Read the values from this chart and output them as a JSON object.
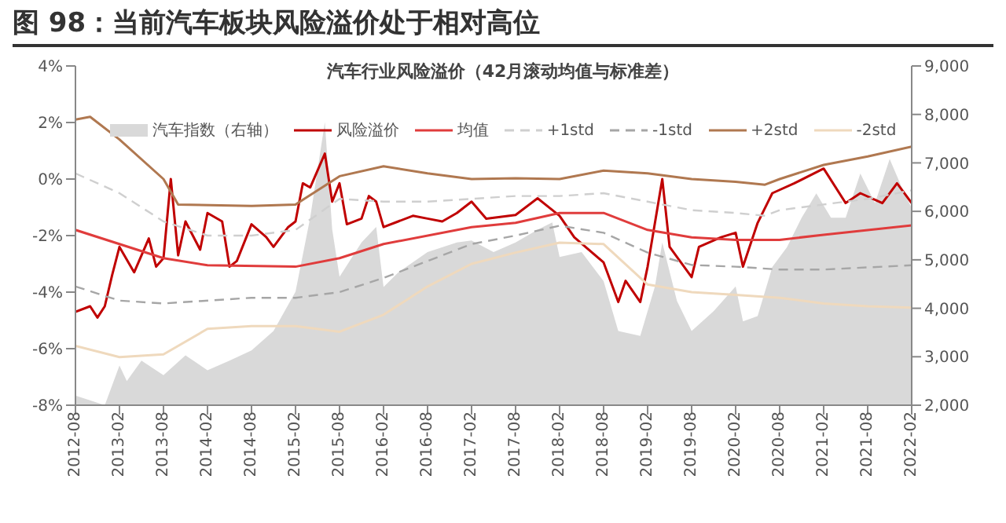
{
  "chart_data": {
    "type": "line",
    "title": "图 98：当前汽车板块风险溢价处于相对高位",
    "subtitle": "汽车行业风险溢价（42月滚动均值与标准差）",
    "xlim": [
      "2012-08",
      "2022-02"
    ],
    "xticks": [
      "2012-08",
      "2013-02",
      "2013-08",
      "2014-02",
      "2014-08",
      "2015-02",
      "2015-08",
      "2016-02",
      "2016-08",
      "2017-02",
      "2017-08",
      "2018-02",
      "2018-08",
      "2019-02",
      "2019-08",
      "2020-02",
      "2020-08",
      "2021-02",
      "2021-08",
      "2022-02"
    ],
    "ylim": [
      -8,
      4
    ],
    "yticks": [
      {
        "value": -8,
        "label": "-8%"
      },
      {
        "value": -6,
        "label": "-6%"
      },
      {
        "value": -4,
        "label": "-4%"
      },
      {
        "value": -2,
        "label": "-2%"
      },
      {
        "value": 0,
        "label": "0%"
      },
      {
        "value": 2,
        "label": "2%"
      },
      {
        "value": 4,
        "label": "4%"
      }
    ],
    "y2lim": [
      2000,
      9000
    ],
    "y2ticks": [
      {
        "value": 2000,
        "label": "2,000"
      },
      {
        "value": 3000,
        "label": "3,000"
      },
      {
        "value": 4000,
        "label": "4,000"
      },
      {
        "value": 5000,
        "label": "5,000"
      },
      {
        "value": 6000,
        "label": "6,000"
      },
      {
        "value": 7000,
        "label": "7,000"
      },
      {
        "value": 8000,
        "label": "8,000"
      },
      {
        "value": 9000,
        "label": "9,000"
      }
    ],
    "grid": false,
    "legend": "top",
    "marker": "none",
    "series": [
      {
        "name": "汽车指数（右轴）",
        "type": "area",
        "axis": "y2",
        "color": "#d9d9d9",
        "x": [
          "2012-08",
          "2012-12",
          "2013-02",
          "2013-03",
          "2013-05",
          "2013-08",
          "2013-11",
          "2014-02",
          "2014-05",
          "2014-08",
          "2014-11",
          "2015-02",
          "2015-04",
          "2015-06",
          "2015-07",
          "2015-08",
          "2015-11",
          "2016-01",
          "2016-02",
          "2016-04",
          "2016-08",
          "2016-12",
          "2017-02",
          "2017-05",
          "2017-08",
          "2017-11",
          "2018-01",
          "2018-02",
          "2018-05",
          "2018-08",
          "2018-10",
          "2019-01",
          "2019-03",
          "2019-04",
          "2019-06",
          "2019-08",
          "2019-11",
          "2020-02",
          "2020-03",
          "2020-05",
          "2020-07",
          "2020-09",
          "2020-11",
          "2021-01",
          "2021-03",
          "2021-05",
          "2021-07",
          "2021-09",
          "2021-11",
          "2022-01",
          "2022-02"
        ],
        "values": [
          2200,
          2000,
          2820,
          2500,
          2920,
          2620,
          3030,
          2720,
          2920,
          3130,
          3530,
          4340,
          5870,
          7840,
          5630,
          4650,
          5360,
          5680,
          4440,
          4740,
          5160,
          5360,
          5400,
          5160,
          5360,
          5620,
          5770,
          5060,
          5160,
          4560,
          3530,
          3430,
          4450,
          5360,
          4150,
          3530,
          3940,
          4450,
          3730,
          3840,
          4850,
          5260,
          5870,
          6370,
          5870,
          5870,
          6780,
          6170,
          7080,
          6370,
          6070
        ]
      },
      {
        "name": "风险溢价",
        "color": "#c00000",
        "line_style": "solid",
        "x": [
          "2012-08",
          "2012-10",
          "2012-11",
          "2012-12",
          "2013-01",
          "2013-02",
          "2013-04",
          "2013-06",
          "2013-07",
          "2013-08",
          "2013-09",
          "2013-10",
          "2013-11",
          "2014-01",
          "2014-02",
          "2014-04",
          "2014-05",
          "2014-06",
          "2014-08",
          "2014-10",
          "2014-11",
          "2015-01",
          "2015-02",
          "2015-03",
          "2015-04",
          "2015-06",
          "2015-07",
          "2015-08",
          "2015-09",
          "2015-11",
          "2015-12",
          "2016-01",
          "2016-02",
          "2016-04",
          "2016-06",
          "2016-08",
          "2016-10",
          "2016-12",
          "2017-02",
          "2017-04",
          "2017-08",
          "2017-11",
          "2018-02",
          "2018-04",
          "2018-08",
          "2018-10",
          "2018-11",
          "2019-01",
          "2019-02",
          "2019-04",
          "2019-05",
          "2019-08",
          "2019-09",
          "2019-12",
          "2020-02",
          "2020-03",
          "2020-05",
          "2020-07",
          "2020-10",
          "2021-02",
          "2021-05",
          "2021-07",
          "2021-10",
          "2021-12",
          "2022-02"
        ],
        "values": [
          -4.7,
          -4.5,
          -4.9,
          -4.5,
          -3.4,
          -2.4,
          -3.3,
          -2.1,
          -3.1,
          -2.8,
          0,
          -2.7,
          -1.5,
          -2.5,
          -1.2,
          -1.5,
          -3.1,
          -2.9,
          -1.6,
          -2.05,
          -2.4,
          -1.7,
          -1.5,
          -0.15,
          -0.3,
          0.9,
          -0.8,
          -0.15,
          -1.6,
          -1.4,
          -0.6,
          -0.8,
          -1.7,
          -1.5,
          -1.3,
          -1.4,
          -1.5,
          -1.2,
          -0.8,
          -1.4,
          -1.27,
          -0.68,
          -1.3,
          -2.06,
          -2.95,
          -4.35,
          -3.6,
          -4.35,
          -3.1,
          0,
          -2.4,
          -3.47,
          -2.4,
          -2.06,
          -1.9,
          -3.1,
          -1.55,
          -0.5,
          -0.15,
          0.37,
          -0.85,
          -0.5,
          -0.85,
          -0.15,
          -0.85
        ]
      },
      {
        "name": "均值",
        "color": "#e03c3c",
        "line_style": "solid",
        "x": [
          "2012-08",
          "2013-08",
          "2014-02",
          "2015-02",
          "2015-08",
          "2016-02",
          "2017-02",
          "2017-08",
          "2018-02",
          "2018-08",
          "2019-02",
          "2019-08",
          "2020-02",
          "2020-08",
          "2021-02",
          "2022-02"
        ],
        "values": [
          -1.8,
          -2.8,
          -3.05,
          -3.1,
          -2.8,
          -2.3,
          -1.7,
          -1.55,
          -1.2,
          -1.2,
          -1.8,
          -2.06,
          -2.15,
          -2.15,
          -1.97,
          -1.64
        ]
      },
      {
        "name": "+1std",
        "color": "#cfcfcf",
        "line_style": "dashed",
        "x": [
          "2012-08",
          "2013-02",
          "2013-08",
          "2014-02",
          "2014-08",
          "2015-02",
          "2015-08",
          "2016-02",
          "2016-08",
          "2017-02",
          "2017-08",
          "2018-02",
          "2018-08",
          "2019-02",
          "2019-08",
          "2020-02",
          "2020-06",
          "2020-08",
          "2021-02",
          "2021-08",
          "2022-02"
        ],
        "values": [
          0.2,
          -0.5,
          -1.5,
          -2.0,
          -2.0,
          -1.8,
          -0.7,
          -0.8,
          -0.8,
          -0.7,
          -0.6,
          -0.6,
          -0.5,
          -0.8,
          -1.1,
          -1.2,
          -1.3,
          -1.1,
          -0.9,
          -0.7,
          -0.4
        ]
      },
      {
        "name": "-1std",
        "color": "#a6a6a6",
        "line_style": "dashed",
        "x": [
          "2012-08",
          "2013-02",
          "2013-08",
          "2014-08",
          "2015-02",
          "2015-08",
          "2016-02",
          "2016-08",
          "2017-02",
          "2017-08",
          "2018-02",
          "2018-08",
          "2019-02",
          "2019-08",
          "2020-02",
          "2020-08",
          "2021-02",
          "2022-02"
        ],
        "values": [
          -3.8,
          -4.3,
          -4.4,
          -4.2,
          -4.2,
          -4.0,
          -3.5,
          -2.9,
          -2.3,
          -2.0,
          -1.65,
          -1.9,
          -2.6,
          -3.04,
          -3.1,
          -3.2,
          -3.2,
          -3.05
        ]
      },
      {
        "name": "+2std",
        "color": "#b07850",
        "line_style": "solid",
        "x": [
          "2012-08",
          "2012-10",
          "2013-02",
          "2013-08",
          "2013-10",
          "2014-08",
          "2015-02",
          "2015-08",
          "2016-02",
          "2016-08",
          "2017-02",
          "2017-08",
          "2018-02",
          "2018-08",
          "2019-02",
          "2019-08",
          "2020-02",
          "2020-06",
          "2020-08",
          "2021-02",
          "2021-08",
          "2022-02"
        ],
        "values": [
          2.1,
          2.2,
          1.4,
          0.0,
          -0.9,
          -0.95,
          -0.9,
          0.1,
          0.45,
          0.2,
          0.0,
          0.03,
          0.0,
          0.3,
          0.2,
          0.0,
          -0.1,
          -0.2,
          0.0,
          0.5,
          0.8,
          1.15
        ]
      },
      {
        "name": "-2std",
        "color": "#efd9bd",
        "line_style": "solid",
        "x": [
          "2012-08",
          "2013-02",
          "2013-08",
          "2014-02",
          "2014-08",
          "2015-02",
          "2015-08",
          "2016-02",
          "2016-08",
          "2017-02",
          "2017-08",
          "2018-02",
          "2018-08",
          "2019-02",
          "2019-08",
          "2020-02",
          "2020-08",
          "2021-02",
          "2021-08",
          "2022-02"
        ],
        "values": [
          -5.9,
          -6.3,
          -6.2,
          -5.3,
          -5.2,
          -5.2,
          -5.4,
          -4.8,
          -3.8,
          -3.0,
          -2.6,
          -2.25,
          -2.3,
          -3.73,
          -4.0,
          -4.1,
          -4.2,
          -4.4,
          -4.5,
          -4.55
        ]
      }
    ]
  }
}
